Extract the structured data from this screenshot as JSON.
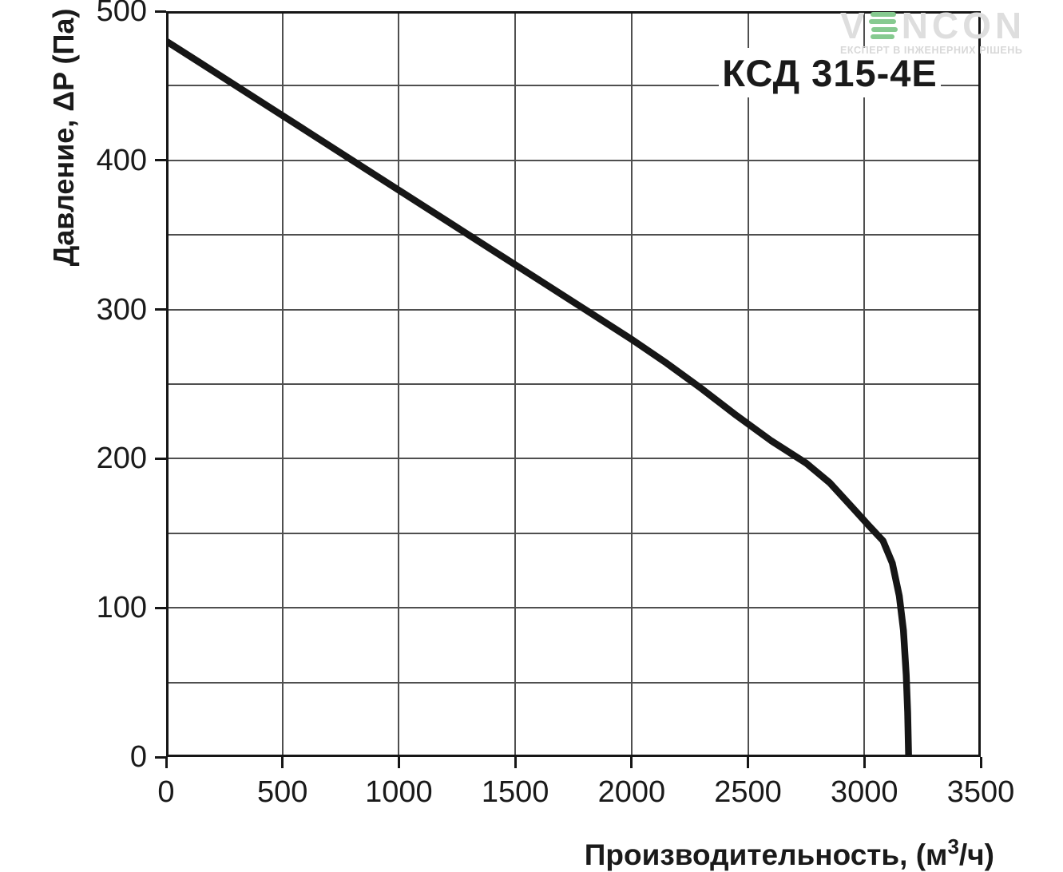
{
  "watermark": {
    "brand_prefix": "V",
    "brand_suffix": "NCON",
    "tagline": "ЕКСПЕРТ В ІНЖЕНЕРНИХ РІШЕНЬ",
    "brand_color": "#dedede",
    "tagline_color": "#d8d8d8",
    "accent_green": "#86ca90"
  },
  "chart_data": {
    "type": "line",
    "title": "КСД 315-4Е",
    "xlabel": "Производительность, (м³/ч)",
    "xlabel_parts": {
      "prefix": "Производительность, (м",
      "sup": "3",
      "suffix": "/ч)"
    },
    "ylabel": "Давление, ΔP (Па)",
    "xlim": [
      0,
      3500
    ],
    "ylim": [
      0,
      500
    ],
    "x_ticks": [
      0,
      500,
      1000,
      1500,
      2000,
      2500,
      3000,
      3500
    ],
    "y_ticks": [
      0,
      100,
      200,
      300,
      400,
      500
    ],
    "x_grid_step": 500,
    "y_grid_step": 50,
    "grid": true,
    "legend": false,
    "series": [
      {
        "name": "КСД 315-4Е",
        "color": "#161616",
        "points": [
          [
            0,
            480
          ],
          [
            200,
            460
          ],
          [
            400,
            440
          ],
          [
            600,
            420
          ],
          [
            800,
            400
          ],
          [
            1000,
            380
          ],
          [
            1200,
            360
          ],
          [
            1400,
            340
          ],
          [
            1600,
            320
          ],
          [
            1800,
            300
          ],
          [
            2000,
            280
          ],
          [
            2150,
            264
          ],
          [
            2300,
            247
          ],
          [
            2450,
            229
          ],
          [
            2600,
            212
          ],
          [
            2750,
            197
          ],
          [
            2850,
            184
          ],
          [
            2950,
            167
          ],
          [
            3020,
            155
          ],
          [
            3080,
            145
          ],
          [
            3120,
            130
          ],
          [
            3150,
            108
          ],
          [
            3168,
            85
          ],
          [
            3180,
            55
          ],
          [
            3186,
            30
          ],
          [
            3190,
            0
          ]
        ]
      }
    ]
  },
  "colors": {
    "grid": "#4f4f4f",
    "frame": "#161616",
    "text": "#1a1a1a"
  }
}
